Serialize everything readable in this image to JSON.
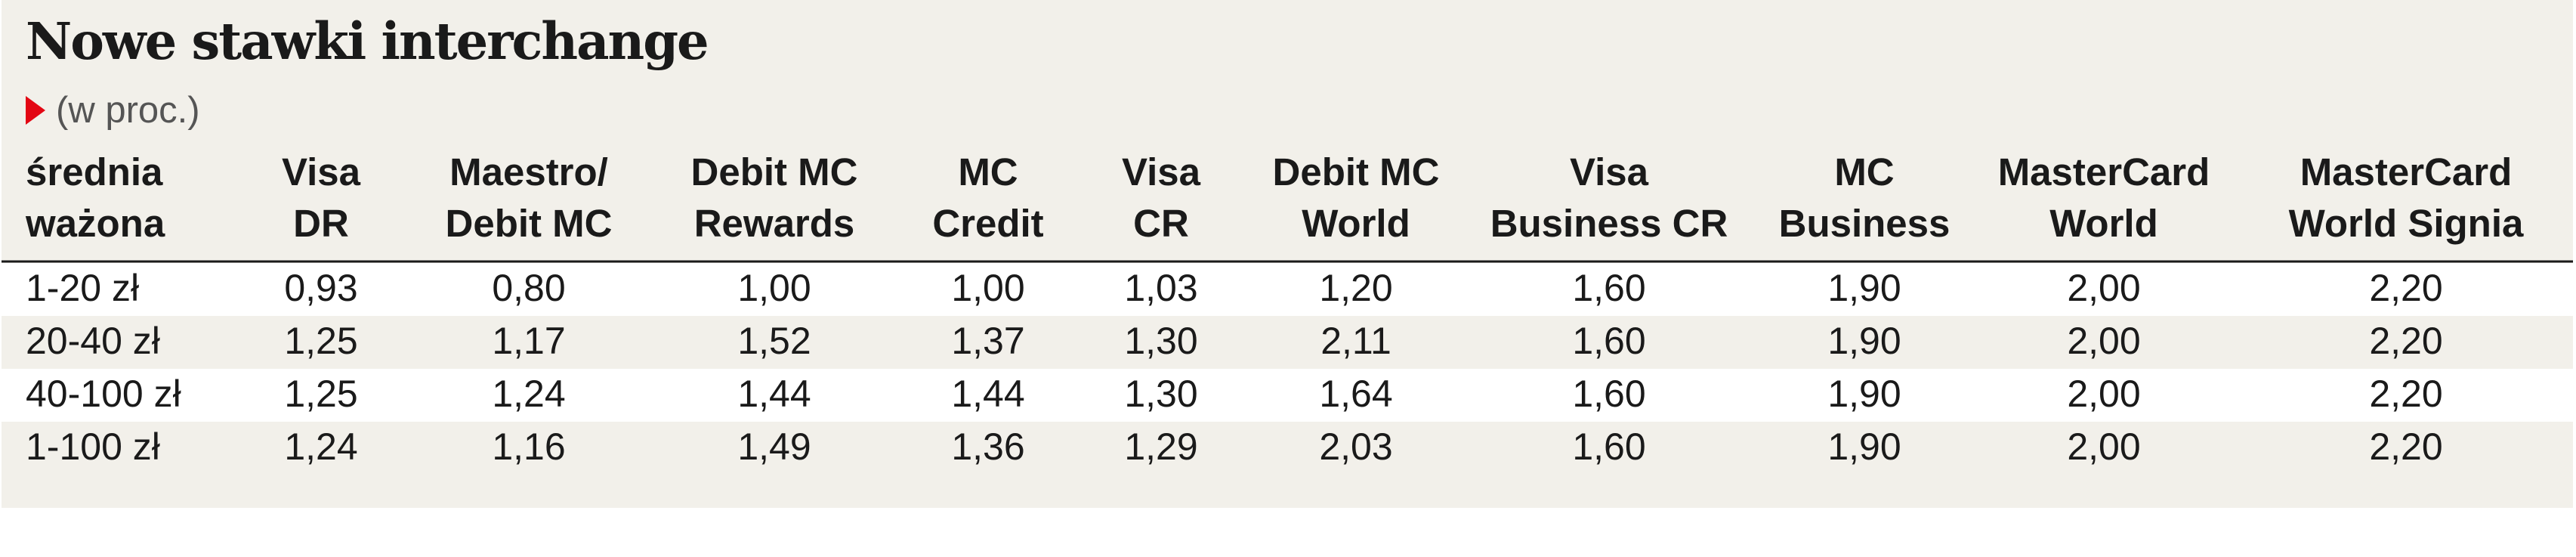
{
  "title": "Nowe stawki interchange",
  "subtitle": "(w proc.)",
  "colors": {
    "background": "#f2f0ea",
    "row_band": "#ffffff",
    "marker": "#e30613",
    "text": "#1a1a1a"
  },
  "chart_data": {
    "type": "table",
    "columns": [
      [
        "średnia",
        "ważona"
      ],
      [
        "Visa",
        "DR"
      ],
      [
        "Maestro/",
        "Debit MC"
      ],
      [
        "Debit MC",
        "Rewards"
      ],
      [
        "MC",
        "Credit"
      ],
      [
        "Visa",
        "CR"
      ],
      [
        "Debit MC",
        "World"
      ],
      [
        "Visa",
        "Business CR"
      ],
      [
        "MC",
        "Business"
      ],
      [
        "MasterCard",
        "World"
      ],
      [
        "MasterCard",
        "World Signia"
      ]
    ],
    "rows": [
      [
        "1-20 zł",
        "0,93",
        "0,80",
        "1,00",
        "1,00",
        "1,03",
        "1,20",
        "1,60",
        "1,90",
        "2,00",
        "2,20"
      ],
      [
        "20-40 zł",
        "1,25",
        "1,17",
        "1,52",
        "1,37",
        "1,30",
        "2,11",
        "1,60",
        "1,90",
        "2,00",
        "2,20"
      ],
      [
        "40-100 zł",
        "1,25",
        "1,24",
        "1,44",
        "1,44",
        "1,30",
        "1,64",
        "1,60",
        "1,90",
        "2,00",
        "2,20"
      ],
      [
        "1-100 zł",
        "1,24",
        "1,16",
        "1,49",
        "1,36",
        "1,29",
        "2,03",
        "1,60",
        "1,90",
        "2,00",
        "2,20"
      ]
    ]
  }
}
